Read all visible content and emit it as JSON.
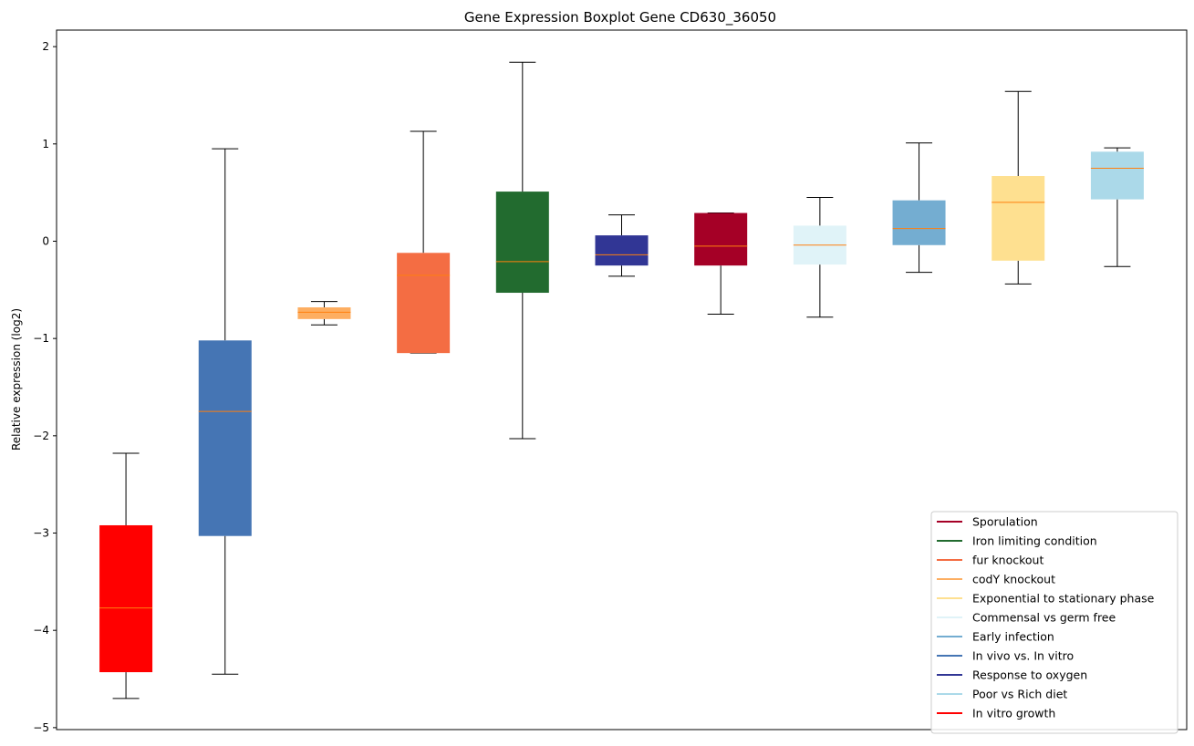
{
  "chart_data": {
    "type": "boxplot",
    "title": "Gene Expression Boxplot Gene CD630_36050",
    "xlabel": "",
    "ylabel": "Relative expression (log2)",
    "ylim": [
      -5.02,
      2.17
    ],
    "yticks": [
      -5,
      -4,
      -3,
      -2,
      -1,
      0,
      1,
      2
    ],
    "ytick_labels": [
      "−5",
      "−4",
      "−3",
      "−2",
      "−1",
      "0",
      "1",
      "2"
    ],
    "grid": false,
    "legend_position": "bottom-right",
    "median_color": "#ff7f0e",
    "boxes": [
      {
        "label": "In vitro growth",
        "color": "#ff0000",
        "whisker_low": -4.7,
        "q1": -4.43,
        "median": -3.77,
        "q3": -2.92,
        "whisker_high": -2.18
      },
      {
        "label": "In vivo vs. In vitro",
        "color": "#4575b4",
        "whisker_low": -4.45,
        "q1": -3.03,
        "median": -1.75,
        "q3": -1.02,
        "whisker_high": 0.95
      },
      {
        "label": "codY knockout",
        "color": "#fdae61",
        "whisker_low": -0.86,
        "q1": -0.8,
        "median": -0.73,
        "q3": -0.68,
        "whisker_high": -0.62
      },
      {
        "label": "fur knockout",
        "color": "#f46d43",
        "whisker_low": -1.15,
        "q1": -1.15,
        "median": -0.35,
        "q3": -0.12,
        "whisker_high": 1.13
      },
      {
        "label": "Iron limiting condition",
        "color": "#226b2f",
        "whisker_low": -2.03,
        "q1": -0.53,
        "median": -0.21,
        "q3": 0.51,
        "whisker_high": 1.84
      },
      {
        "label": "Response to oxygen",
        "color": "#313695",
        "whisker_low": -0.36,
        "q1": -0.25,
        "median": -0.14,
        "q3": 0.06,
        "whisker_high": 0.27
      },
      {
        "label": "Sporulation",
        "color": "#a50026",
        "whisker_low": -0.75,
        "q1": -0.25,
        "median": -0.05,
        "q3": 0.29,
        "whisker_high": 0.29
      },
      {
        "label": "Commensal vs germ free",
        "color": "#e0f3f8",
        "whisker_low": -0.78,
        "q1": -0.24,
        "median": -0.04,
        "q3": 0.16,
        "whisker_high": 0.45
      },
      {
        "label": "Early infection",
        "color": "#74add1",
        "whisker_low": -0.32,
        "q1": -0.04,
        "median": 0.13,
        "q3": 0.42,
        "whisker_high": 1.01
      },
      {
        "label": "Exponential to stationary phase",
        "color": "#fee090",
        "whisker_low": -0.44,
        "q1": -0.2,
        "median": 0.4,
        "q3": 0.67,
        "whisker_high": 1.54
      },
      {
        "label": "Poor vs Rich diet",
        "color": "#abd9e9",
        "whisker_low": -0.26,
        "q1": 0.43,
        "median": 0.75,
        "q3": 0.92,
        "whisker_high": 0.96
      }
    ],
    "legend": [
      {
        "label": "Sporulation",
        "color": "#a50026"
      },
      {
        "label": "Iron limiting condition",
        "color": "#226b2f"
      },
      {
        "label": "fur knockout",
        "color": "#f46d43"
      },
      {
        "label": "codY knockout",
        "color": "#fdae61"
      },
      {
        "label": "Exponential to stationary phase",
        "color": "#fee090"
      },
      {
        "label": "Commensal vs germ free",
        "color": "#e0f3f8"
      },
      {
        "label": "Early infection",
        "color": "#74add1"
      },
      {
        "label": "In vivo vs. In vitro",
        "color": "#4575b4"
      },
      {
        "label": "Response to oxygen",
        "color": "#313695"
      },
      {
        "label": "Poor vs Rich diet",
        "color": "#abd9e9"
      },
      {
        "label": "In vitro growth",
        "color": "#ff0000"
      }
    ]
  }
}
